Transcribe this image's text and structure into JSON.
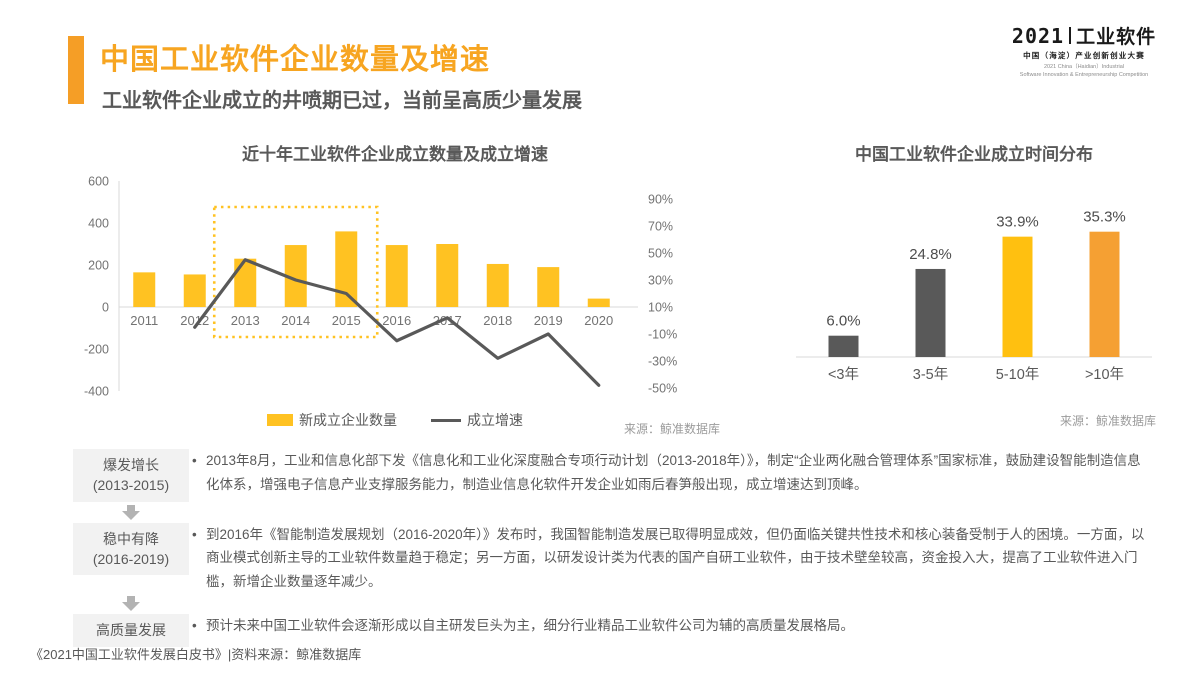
{
  "page": {
    "title": "中国工业软件企业数量及增速",
    "subtitle": "工业软件企业成立的井喷期已过，当前呈高质少量发展"
  },
  "logo": {
    "year": "2021",
    "name": "工业软件",
    "sub_cn": "中国（海淀）产业创新创业大赛",
    "sub_en_1": "2021 China（Haidian）Industrial",
    "sub_en_2": "Software Innovation & Entrepreneurship Competition"
  },
  "chart_data": [
    {
      "type": "bar+line",
      "title": "近十年工业软件企业成立数量及成立增速",
      "categories": [
        "2011",
        "2012",
        "2013",
        "2014",
        "2015",
        "2016",
        "2017",
        "2018",
        "2019",
        "2020"
      ],
      "series": [
        {
          "name": "新成立企业数量",
          "type": "bar",
          "color": "#FFC222",
          "values": [
            165,
            155,
            230,
            295,
            360,
            295,
            300,
            205,
            190,
            40
          ]
        },
        {
          "name": "成立增速",
          "type": "line",
          "color": "#595959",
          "axis": "right",
          "values": [
            null,
            -5,
            45,
            30,
            20,
            -15,
            2,
            -28,
            -10,
            -48
          ]
        }
      ],
      "left_axis": {
        "ticks": [
          600,
          400,
          200,
          0,
          -200,
          -400
        ],
        "range": [
          -400,
          600
        ]
      },
      "right_axis": {
        "ticks": [
          "90%",
          "70%",
          "50%",
          "30%",
          "10%",
          "-10%",
          "-30%",
          "-50%"
        ],
        "range": [
          -50,
          90
        ]
      },
      "highlight": {
        "from": "2013",
        "to": "2015",
        "color": "#FFC222"
      },
      "legend_position": "bottom",
      "grid": false,
      "source": "来源：鲸准数据库"
    },
    {
      "type": "bar",
      "title": "中国工业软件企业成立时间分布",
      "categories": [
        "<3年",
        "3-5年",
        "5-10年",
        ">10年"
      ],
      "values": [
        6.0,
        24.8,
        33.9,
        35.3
      ],
      "labels": [
        "6.0%",
        "24.8%",
        "33.9%",
        "35.3%"
      ],
      "colors": [
        "#595959",
        "#595959",
        "#FFC010",
        "#F5A033"
      ],
      "ylim": [
        0,
        40
      ],
      "grid": false,
      "source": "来源：鲸准数据库"
    }
  ],
  "timeline": {
    "phases": [
      {
        "label": "爆发增长",
        "sublabel": "(2013-2015)",
        "text": "2013年8月，工业和信息化部下发《信息化和工业化深度融合专项行动计划（2013-2018年）》，制定“企业两化融合管理体系”国家标准，鼓励建设智能制造信息化体系，增强电子信息产业支撑服务能力，制造业信息化软件开发企业如雨后春笋般出现，成立增速达到顶峰。"
      },
      {
        "label": "稳中有降",
        "sublabel": "(2016-2019)",
        "text": "到2016年《智能制造发展规划（2016-2020年）》发布时，我国智能制造发展已取得明显成效，但仍面临关键共性技术和核心装备受制于人的困境。一方面，以商业模式创新主导的工业软件数量趋于稳定；另一方面，以研发设计类为代表的国产自研工业软件，由于技术壁垒较高，资金投入大，提高了工业软件进入门槛，新增企业数量逐年减少。"
      },
      {
        "label": "高质量发展",
        "sublabel": "",
        "text": "预计未来中国工业软件会逐渐形成以自主研发巨头为主，细分行业精品工业软件公司为辅的高质量发展格局。"
      }
    ]
  },
  "footer": {
    "text": "《2021中国工业软件发展白皮书》|资料来源：鲸准数据库"
  }
}
